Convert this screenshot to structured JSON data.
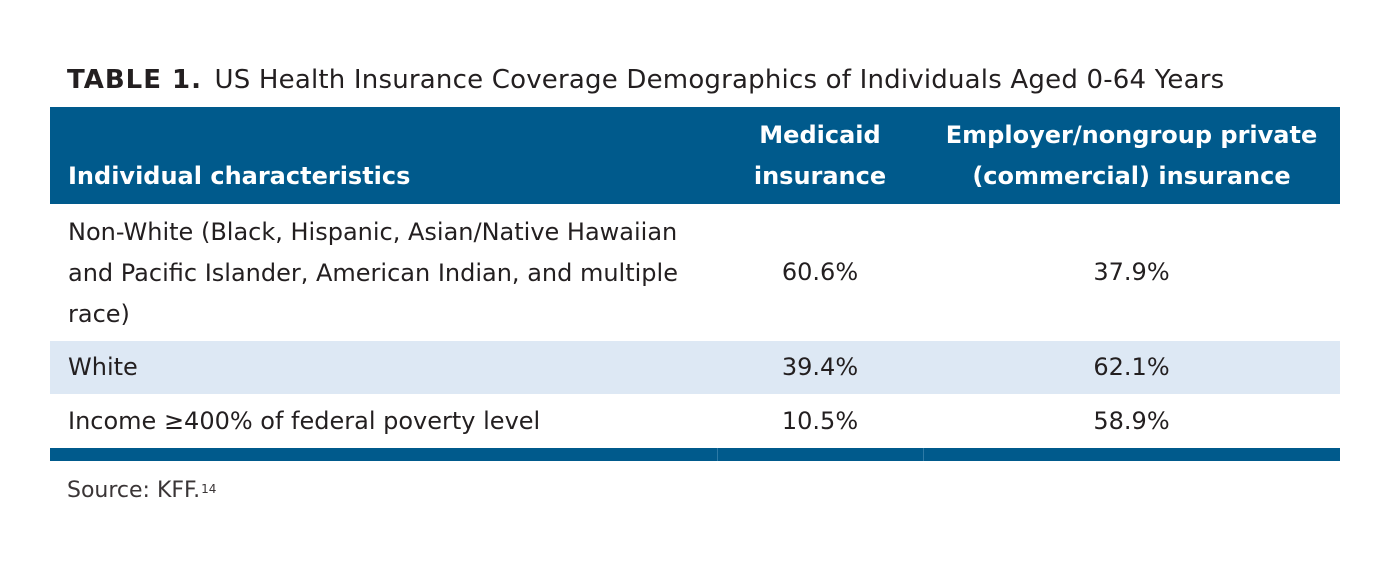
{
  "caption": {
    "label": "TABLE 1.",
    "title": "US Health Insurance Coverage Demographics of Individuals Aged 0-64 Years"
  },
  "table": {
    "headers": {
      "characteristics": "Individual characteristics",
      "medicaid": "Medicaid\ninsurance",
      "private": "Employer/nongroup private\n(commercial) insurance"
    },
    "rows": [
      {
        "characteristic": "Non-White (Black, Hispanic, Asian/Native Hawaiian and Pacific Islander, American Indian, and multiple race)",
        "medicaid": "60.6%",
        "private": "37.9%"
      },
      {
        "characteristic": "White",
        "medicaid": "39.4%",
        "private": "62.1%"
      },
      {
        "characteristic": "Income ≥400% of federal poverty level",
        "medicaid": "10.5%",
        "private": "58.9%"
      }
    ]
  },
  "source": {
    "text": "Source: KFF.",
    "reference": "14"
  },
  "colors": {
    "header_bg": "#005a8c",
    "stripe_bg": "#dde8f4",
    "text": "#231f20"
  }
}
